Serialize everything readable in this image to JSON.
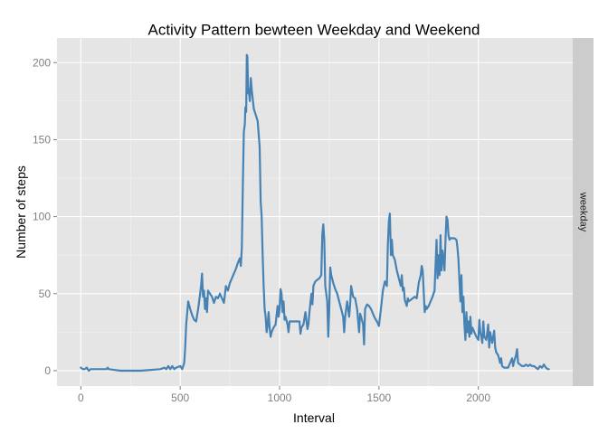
{
  "chart_data": {
    "type": "line",
    "title": "Activity Pattern bewteen Weekday and Weekend",
    "xlabel": "Interval",
    "ylabel": "Number of steps",
    "facet_label": "weekday",
    "xlim": [
      -120,
      2475
    ],
    "ylim": [
      -10,
      216
    ],
    "x_ticks": [
      0,
      500,
      1000,
      1500,
      2000
    ],
    "y_ticks": [
      0,
      50,
      100,
      150,
      200
    ],
    "grid": true,
    "colors": {
      "line": "#4682b4",
      "panel": "#e5e5e5",
      "grid_major": "#ffffff",
      "grid_minor": "#f2f2f2",
      "strip": "#cccccc",
      "tick_text": "#7f7f7f"
    },
    "series": [
      {
        "values": [
          [
            0,
            2
          ],
          [
            10,
            1
          ],
          [
            20,
            1
          ],
          [
            30,
            2
          ],
          [
            40,
            0
          ],
          [
            50,
            1
          ],
          [
            100,
            1
          ],
          [
            130,
            1
          ],
          [
            135,
            2
          ],
          [
            140,
            1
          ],
          [
            200,
            0
          ],
          [
            300,
            0
          ],
          [
            400,
            1
          ],
          [
            420,
            2
          ],
          [
            430,
            1
          ],
          [
            440,
            3
          ],
          [
            450,
            1
          ],
          [
            460,
            3
          ],
          [
            470,
            1
          ],
          [
            480,
            2
          ],
          [
            500,
            3
          ],
          [
            510,
            1
          ],
          [
            515,
            3
          ],
          [
            520,
            5
          ],
          [
            525,
            15
          ],
          [
            530,
            30
          ],
          [
            540,
            45
          ],
          [
            550,
            40
          ],
          [
            560,
            36
          ],
          [
            570,
            33
          ],
          [
            580,
            32
          ],
          [
            590,
            40
          ],
          [
            600,
            50
          ],
          [
            605,
            55
          ],
          [
            610,
            63
          ],
          [
            615,
            48
          ],
          [
            620,
            52
          ],
          [
            625,
            40
          ],
          [
            630,
            47
          ],
          [
            635,
            38
          ],
          [
            640,
            52
          ],
          [
            650,
            50
          ],
          [
            660,
            48
          ],
          [
            670,
            44
          ],
          [
            680,
            48
          ],
          [
            690,
            47
          ],
          [
            700,
            50
          ],
          [
            710,
            47
          ],
          [
            720,
            44
          ],
          [
            730,
            55
          ],
          [
            740,
            52
          ],
          [
            750,
            57
          ],
          [
            760,
            60
          ],
          [
            770,
            63
          ],
          [
            780,
            66
          ],
          [
            790,
            70
          ],
          [
            800,
            73
          ],
          [
            805,
            68
          ],
          [
            810,
            80
          ],
          [
            815,
            120
          ],
          [
            820,
            155
          ],
          [
            825,
            160
          ],
          [
            828,
            171
          ],
          [
            832,
            168
          ],
          [
            835,
            205
          ],
          [
            838,
            204
          ],
          [
            842,
            180
          ],
          [
            845,
            183
          ],
          [
            850,
            175
          ],
          [
            855,
            190
          ],
          [
            860,
            182
          ],
          [
            865,
            176
          ],
          [
            870,
            170
          ],
          [
            880,
            166
          ],
          [
            890,
            162
          ],
          [
            900,
            145
          ],
          [
            905,
            110
          ],
          [
            910,
            100
          ],
          [
            915,
            75
          ],
          [
            920,
            55
          ],
          [
            925,
            40
          ],
          [
            930,
            35
          ],
          [
            935,
            25
          ],
          [
            940,
            30
          ],
          [
            945,
            38
          ],
          [
            950,
            28
          ],
          [
            955,
            22
          ],
          [
            960,
            25
          ],
          [
            970,
            28
          ],
          [
            980,
            30
          ],
          [
            990,
            42
          ],
          [
            995,
            35
          ],
          [
            1000,
            40
          ],
          [
            1005,
            53
          ],
          [
            1010,
            50
          ],
          [
            1015,
            38
          ],
          [
            1020,
            45
          ],
          [
            1025,
            33
          ],
          [
            1030,
            35
          ],
          [
            1040,
            30
          ],
          [
            1045,
            25
          ],
          [
            1050,
            32
          ],
          [
            1100,
            32
          ],
          [
            1105,
            24
          ],
          [
            1110,
            28
          ],
          [
            1120,
            30
          ],
          [
            1130,
            38
          ],
          [
            1140,
            27
          ],
          [
            1145,
            30
          ],
          [
            1150,
            38
          ],
          [
            1160,
            50
          ],
          [
            1165,
            43
          ],
          [
            1170,
            55
          ],
          [
            1180,
            58
          ],
          [
            1200,
            60
          ],
          [
            1210,
            62
          ],
          [
            1215,
            88
          ],
          [
            1220,
            95
          ],
          [
            1225,
            85
          ],
          [
            1230,
            55
          ],
          [
            1240,
            45
          ],
          [
            1245,
            22
          ],
          [
            1250,
            40
          ],
          [
            1255,
            67
          ],
          [
            1260,
            62
          ],
          [
            1270,
            57
          ],
          [
            1280,
            53
          ],
          [
            1290,
            50
          ],
          [
            1300,
            45
          ],
          [
            1310,
            40
          ],
          [
            1320,
            35
          ],
          [
            1325,
            25
          ],
          [
            1330,
            35
          ],
          [
            1340,
            45
          ],
          [
            1350,
            35
          ],
          [
            1355,
            43
          ],
          [
            1360,
            55
          ],
          [
            1370,
            48
          ],
          [
            1380,
            47
          ],
          [
            1390,
            40
          ],
          [
            1400,
            25
          ],
          [
            1405,
            37
          ],
          [
            1410,
            35
          ],
          [
            1420,
            30
          ],
          [
            1425,
            17
          ],
          [
            1430,
            40
          ],
          [
            1440,
            43
          ],
          [
            1450,
            42
          ],
          [
            1460,
            40
          ],
          [
            1470,
            37
          ],
          [
            1480,
            34
          ],
          [
            1490,
            32
          ],
          [
            1500,
            29
          ],
          [
            1510,
            40
          ],
          [
            1520,
            52
          ],
          [
            1530,
            58
          ],
          [
            1540,
            55
          ],
          [
            1545,
            82
          ],
          [
            1550,
            97
          ],
          [
            1555,
            102
          ],
          [
            1560,
            75
          ],
          [
            1565,
            85
          ],
          [
            1570,
            75
          ],
          [
            1580,
            72
          ],
          [
            1590,
            65
          ],
          [
            1600,
            60
          ],
          [
            1610,
            55
          ],
          [
            1615,
            62
          ],
          [
            1620,
            52
          ],
          [
            1625,
            54
          ],
          [
            1630,
            46
          ],
          [
            1640,
            42
          ],
          [
            1645,
            47
          ],
          [
            1650,
            45
          ],
          [
            1660,
            46
          ],
          [
            1670,
            47
          ],
          [
            1680,
            48
          ],
          [
            1690,
            47
          ],
          [
            1700,
            57
          ],
          [
            1710,
            62
          ],
          [
            1715,
            68
          ],
          [
            1720,
            65
          ],
          [
            1730,
            38
          ],
          [
            1735,
            42
          ],
          [
            1740,
            40
          ],
          [
            1750,
            42
          ],
          [
            1760,
            45
          ],
          [
            1770,
            48
          ],
          [
            1780,
            52
          ],
          [
            1790,
            85
          ],
          [
            1795,
            60
          ],
          [
            1800,
            75
          ],
          [
            1805,
            62
          ],
          [
            1810,
            88
          ],
          [
            1815,
            65
          ],
          [
            1820,
            78
          ],
          [
            1825,
            72
          ],
          [
            1830,
            65
          ],
          [
            1835,
            85
          ],
          [
            1840,
            100
          ],
          [
            1845,
            98
          ],
          [
            1850,
            88
          ],
          [
            1855,
            85
          ],
          [
            1860,
            86
          ],
          [
            1870,
            86
          ],
          [
            1880,
            86
          ],
          [
            1890,
            85
          ],
          [
            1895,
            80
          ],
          [
            1900,
            72
          ],
          [
            1910,
            45
          ],
          [
            1915,
            62
          ],
          [
            1920,
            38
          ],
          [
            1925,
            48
          ],
          [
            1930,
            30
          ],
          [
            1935,
            20
          ],
          [
            1940,
            38
          ],
          [
            1945,
            25
          ],
          [
            1950,
            32
          ],
          [
            1955,
            22
          ],
          [
            1960,
            35
          ],
          [
            1965,
            24
          ],
          [
            1970,
            28
          ],
          [
            1980,
            25
          ],
          [
            1990,
            22
          ],
          [
            2000,
            20
          ],
          [
            2005,
            33
          ],
          [
            2010,
            25
          ],
          [
            2015,
            22
          ],
          [
            2020,
            18
          ],
          [
            2025,
            32
          ],
          [
            2030,
            22
          ],
          [
            2040,
            20
          ],
          [
            2050,
            30
          ],
          [
            2055,
            15
          ],
          [
            2060,
            25
          ],
          [
            2070,
            18
          ],
          [
            2080,
            26
          ],
          [
            2085,
            15
          ],
          [
            2090,
            12
          ],
          [
            2100,
            10
          ],
          [
            2110,
            5
          ],
          [
            2115,
            8
          ],
          [
            2120,
            3
          ],
          [
            2130,
            2
          ],
          [
            2140,
            2
          ],
          [
            2150,
            2
          ],
          [
            2160,
            5
          ],
          [
            2170,
            8
          ],
          [
            2175,
            3
          ],
          [
            2180,
            6
          ],
          [
            2190,
            10
          ],
          [
            2195,
            14
          ],
          [
            2200,
            5
          ],
          [
            2210,
            4
          ],
          [
            2220,
            3
          ],
          [
            2230,
            3
          ],
          [
            2240,
            4
          ],
          [
            2250,
            3
          ],
          [
            2260,
            4
          ],
          [
            2270,
            3
          ],
          [
            2280,
            3
          ],
          [
            2290,
            2
          ],
          [
            2300,
            1
          ],
          [
            2310,
            3
          ],
          [
            2320,
            2
          ],
          [
            2330,
            4
          ],
          [
            2340,
            2
          ],
          [
            2350,
            1
          ],
          [
            2355,
            1
          ]
        ]
      }
    ]
  }
}
